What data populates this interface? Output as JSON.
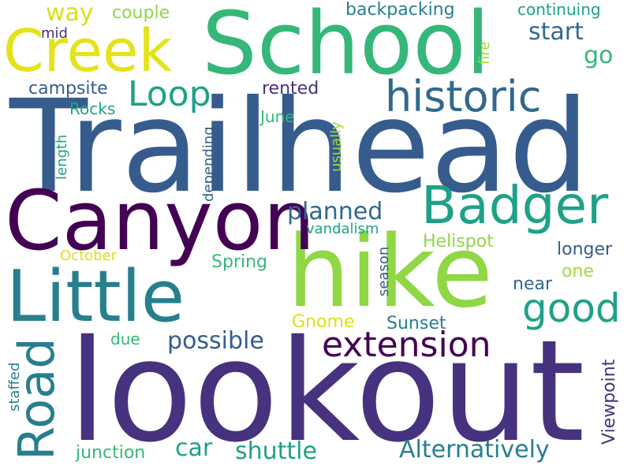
{
  "palette": {
    "deep_purple": "#46327e",
    "dark_purple": "#440154",
    "slate_blue": "#365c8d",
    "steel_blue": "#31688e",
    "teal": "#277f8e",
    "sea_green": "#1fa187",
    "green": "#35b779",
    "light_green": "#8fd744",
    "lime": "#a0da39",
    "yellow": "#e4e319",
    "gold": "#d8e219"
  },
  "words": {
    "lookout": "lookout",
    "trailhead": "Trailhead",
    "school": "School",
    "hike": "hike",
    "canyon": "Canyon",
    "little": "Little",
    "creek": "Creek",
    "badger": "Badger",
    "historic": "historic",
    "road": "Road",
    "extension": "extension",
    "good": "good",
    "loop": "Loop",
    "possible": "possible",
    "planned": "planned",
    "start": "start",
    "alternatively": "Alternatively",
    "shuttle": "shuttle",
    "backpacking": "backpacking",
    "way": "way",
    "couple": "couple",
    "continuing": "continuing",
    "go": "go",
    "helispot": "Helispot",
    "viewpoint": "Viewpoint",
    "car": "car",
    "campsite": "campsite",
    "rented": "rented",
    "rocks": "Rocks",
    "june": "June",
    "mid": "mid",
    "fire": "fire",
    "length": "length",
    "depending": "depending",
    "usually": "usually",
    "vandalism": "vandalism",
    "october": "October",
    "spring": "Spring",
    "longer": "longer",
    "one": "one",
    "near": "near",
    "season": "season",
    "gnome": "Gnome",
    "sunset": "Sunset",
    "due": "due",
    "staffed": "staffed",
    "junction": "junction"
  }
}
